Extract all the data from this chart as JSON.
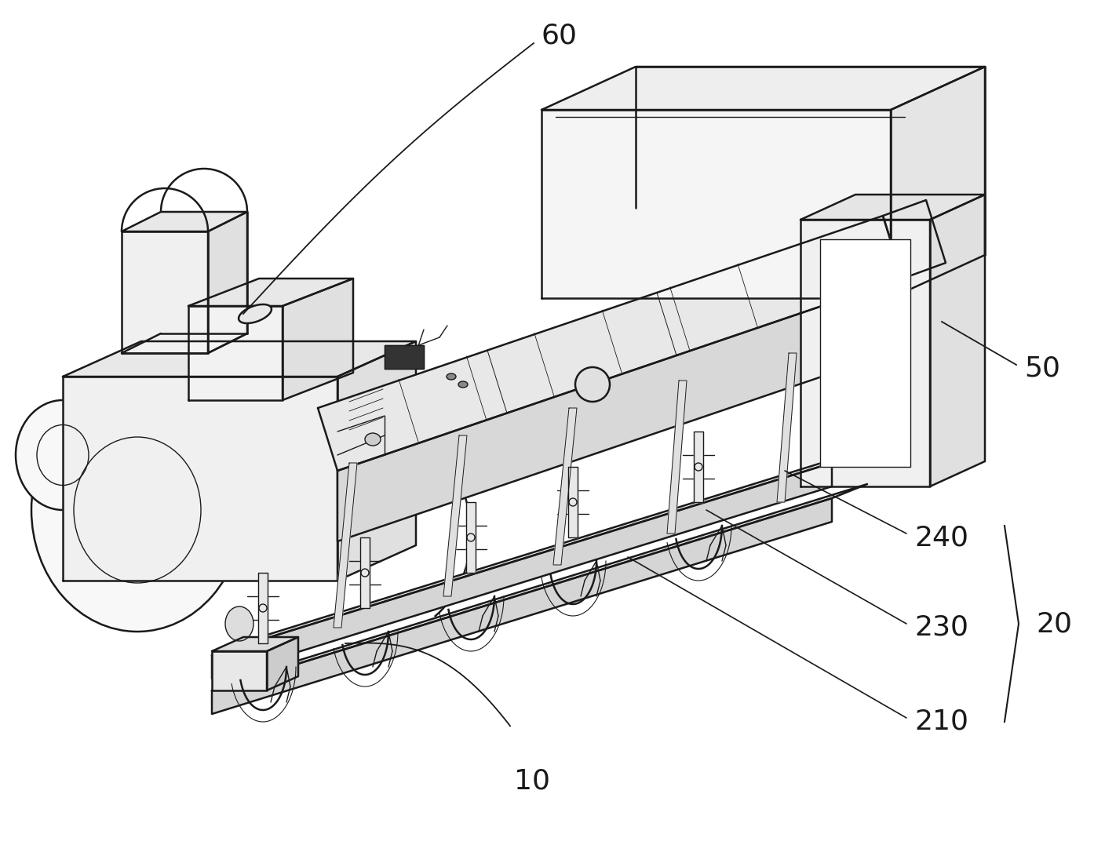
{
  "bg_color": "#ffffff",
  "lc": "#1a1a1a",
  "lw": 1.8,
  "tlw": 1.0,
  "label_fs": 26,
  "figsize": [
    13.94,
    10.77
  ],
  "dpi": 100
}
